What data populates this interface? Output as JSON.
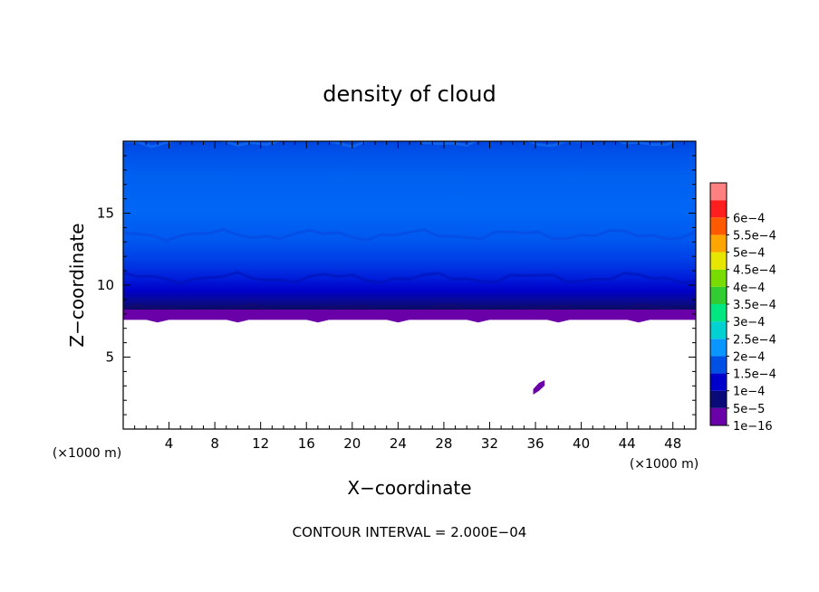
{
  "chart_data": {
    "type": "heatmap",
    "title": "density of cloud",
    "xlabel": "X−coordinate",
    "ylabel": "Z−coordinate",
    "x_unit": "(×1000 m)",
    "xlim": [
      0,
      50
    ],
    "ylim": [
      0,
      20
    ],
    "x_ticks": [
      4,
      8,
      12,
      16,
      20,
      24,
      28,
      32,
      36,
      40,
      44,
      48
    ],
    "y_ticks": [
      5,
      10,
      15
    ],
    "grid": false,
    "note": "CONTOUR INTERVAL = 2.000E−04",
    "colorbar": {
      "levels": [
        "1e−16",
        "5e−5",
        "1e−4",
        "1.5e−4",
        "2e−4",
        "2.5e−4",
        "3e−4",
        "3.5e−4",
        "4e−4",
        "4.5e−4",
        "5e−4",
        "5.5e−4",
        "6e−4"
      ],
      "colors": [
        "#6a00a8",
        "#0a0a78",
        "#0000cd",
        "#0050e6",
        "#0a96ff",
        "#00d2d2",
        "#00e680",
        "#32cd32",
        "#78dc00",
        "#e6e600",
        "#ffa500",
        "#ff5a00",
        "#ff1e1e",
        "#ff8080"
      ]
    },
    "bands": [
      {
        "level": "1e−16",
        "z_range": [
          7.6,
          8.3
        ]
      },
      {
        "level": "5e−5",
        "z_range": [
          8.3,
          10.5
        ]
      },
      {
        "level": "1e−4",
        "z_range": [
          10.5,
          13.5
        ]
      },
      {
        "level": "1.5e−4",
        "z_range": [
          13.5,
          20
        ]
      }
    ],
    "isolated_cloud": {
      "x_range": [
        35.8,
        36.8
      ],
      "z_range": [
        2.4,
        3.4
      ]
    }
  }
}
